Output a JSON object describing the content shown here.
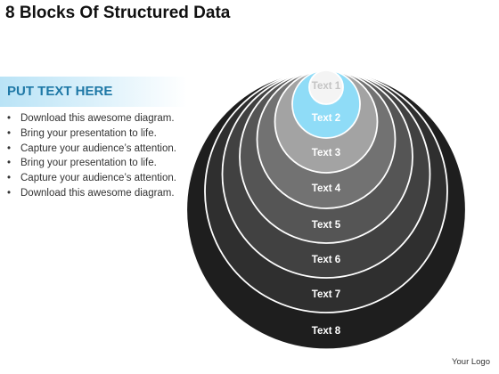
{
  "title": "8 Blocks Of Structured Data",
  "sidebar": {
    "heading": "PUT TEXT HERE",
    "bullets": [
      "Download this awesome diagram.",
      "Bring your presentation to life.",
      "Capture your audience’s attention.",
      "Bring your presentation to life.",
      "Capture your audience’s attention.",
      "Download this awesome diagram."
    ]
  },
  "diagram": {
    "blocks": [
      {
        "label": "Text 8",
        "fill": "#1e1e1e",
        "text_color": "#ffffff"
      },
      {
        "label": "Text 7",
        "fill": "#2f2f2f",
        "text_color": "#ffffff"
      },
      {
        "label": "Text 6",
        "fill": "#414141",
        "text_color": "#ffffff"
      },
      {
        "label": "Text 5",
        "fill": "#555555",
        "text_color": "#ffffff"
      },
      {
        "label": "Text 4",
        "fill": "#727272",
        "text_color": "#ffffff"
      },
      {
        "label": "Text 3",
        "fill": "#a3a3a3",
        "text_color": "#ffffff"
      },
      {
        "label": "Text 2",
        "fill": "#8fdcf7",
        "text_color": "#ffffff"
      },
      {
        "label": "Text 1",
        "fill": "#f4f4f4",
        "text_color": "#c4c4c4"
      }
    ],
    "ring_stroke": "#ffffff"
  },
  "footer": {
    "logo_text": "Your Logo"
  }
}
